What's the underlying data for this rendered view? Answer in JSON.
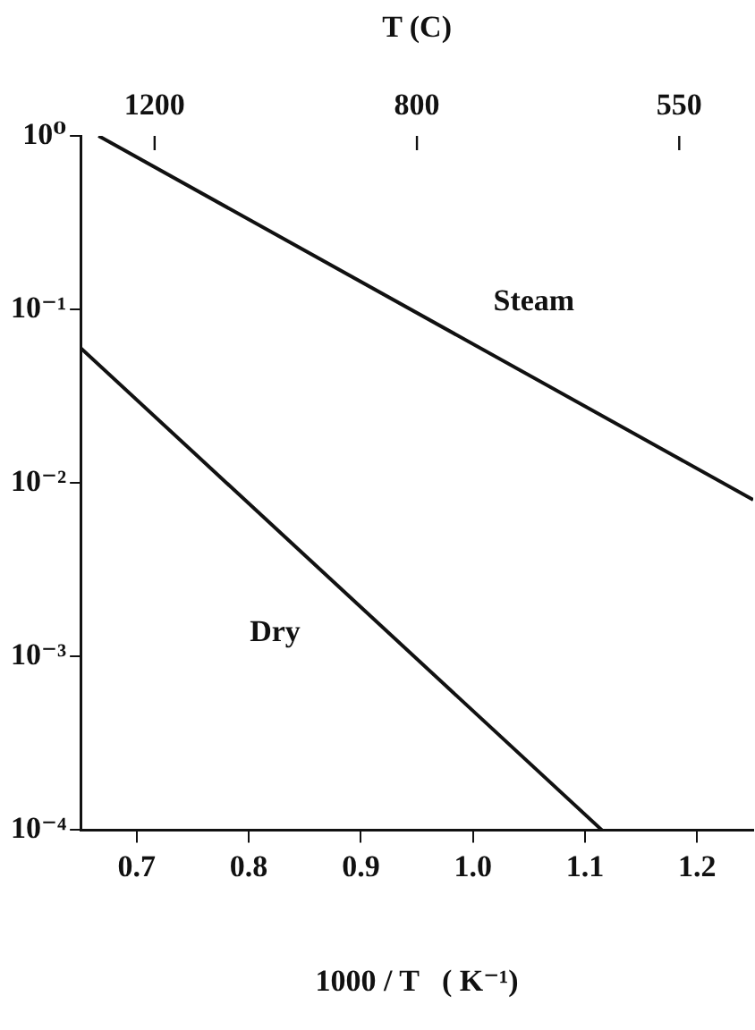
{
  "chart_data": {
    "type": "line",
    "x2label": "T (C)",
    "xlabel": "1000 / T   ( K⁻¹)",
    "xlim": [
      0.65,
      1.25
    ],
    "xticks": [
      {
        "value": 0.7,
        "label": "0.7"
      },
      {
        "value": 0.8,
        "label": "0.8"
      },
      {
        "value": 0.9,
        "label": "0.9"
      },
      {
        "value": 1.0,
        "label": "1.0"
      },
      {
        "value": 1.1,
        "label": "1.1"
      },
      {
        "value": 1.2,
        "label": "1.2"
      }
    ],
    "annotations": [
      "1200",
      "800",
      "550"
    ],
    "ylim": [
      0.0001,
      1
    ],
    "yticks": [
      {
        "value": 1,
        "label": "10⁰"
      },
      {
        "value": 0.1,
        "label": "10⁻¹"
      },
      {
        "value": 0.01,
        "label": "10⁻²"
      },
      {
        "value": 0.001,
        "label": "10⁻³"
      },
      {
        "value": 0.0001,
        "label": "10⁻⁴"
      }
    ],
    "log": "y",
    "series": [
      {
        "name": "Steam",
        "color": "#111111",
        "x": [
          0.666,
          1.25
        ],
        "values": [
          1,
          0.008
        ]
      },
      {
        "name": "Dry",
        "color": "#111111",
        "x": [
          0.65,
          1.115
        ],
        "values": [
          0.06,
          0.0001
        ]
      }
    ]
  }
}
